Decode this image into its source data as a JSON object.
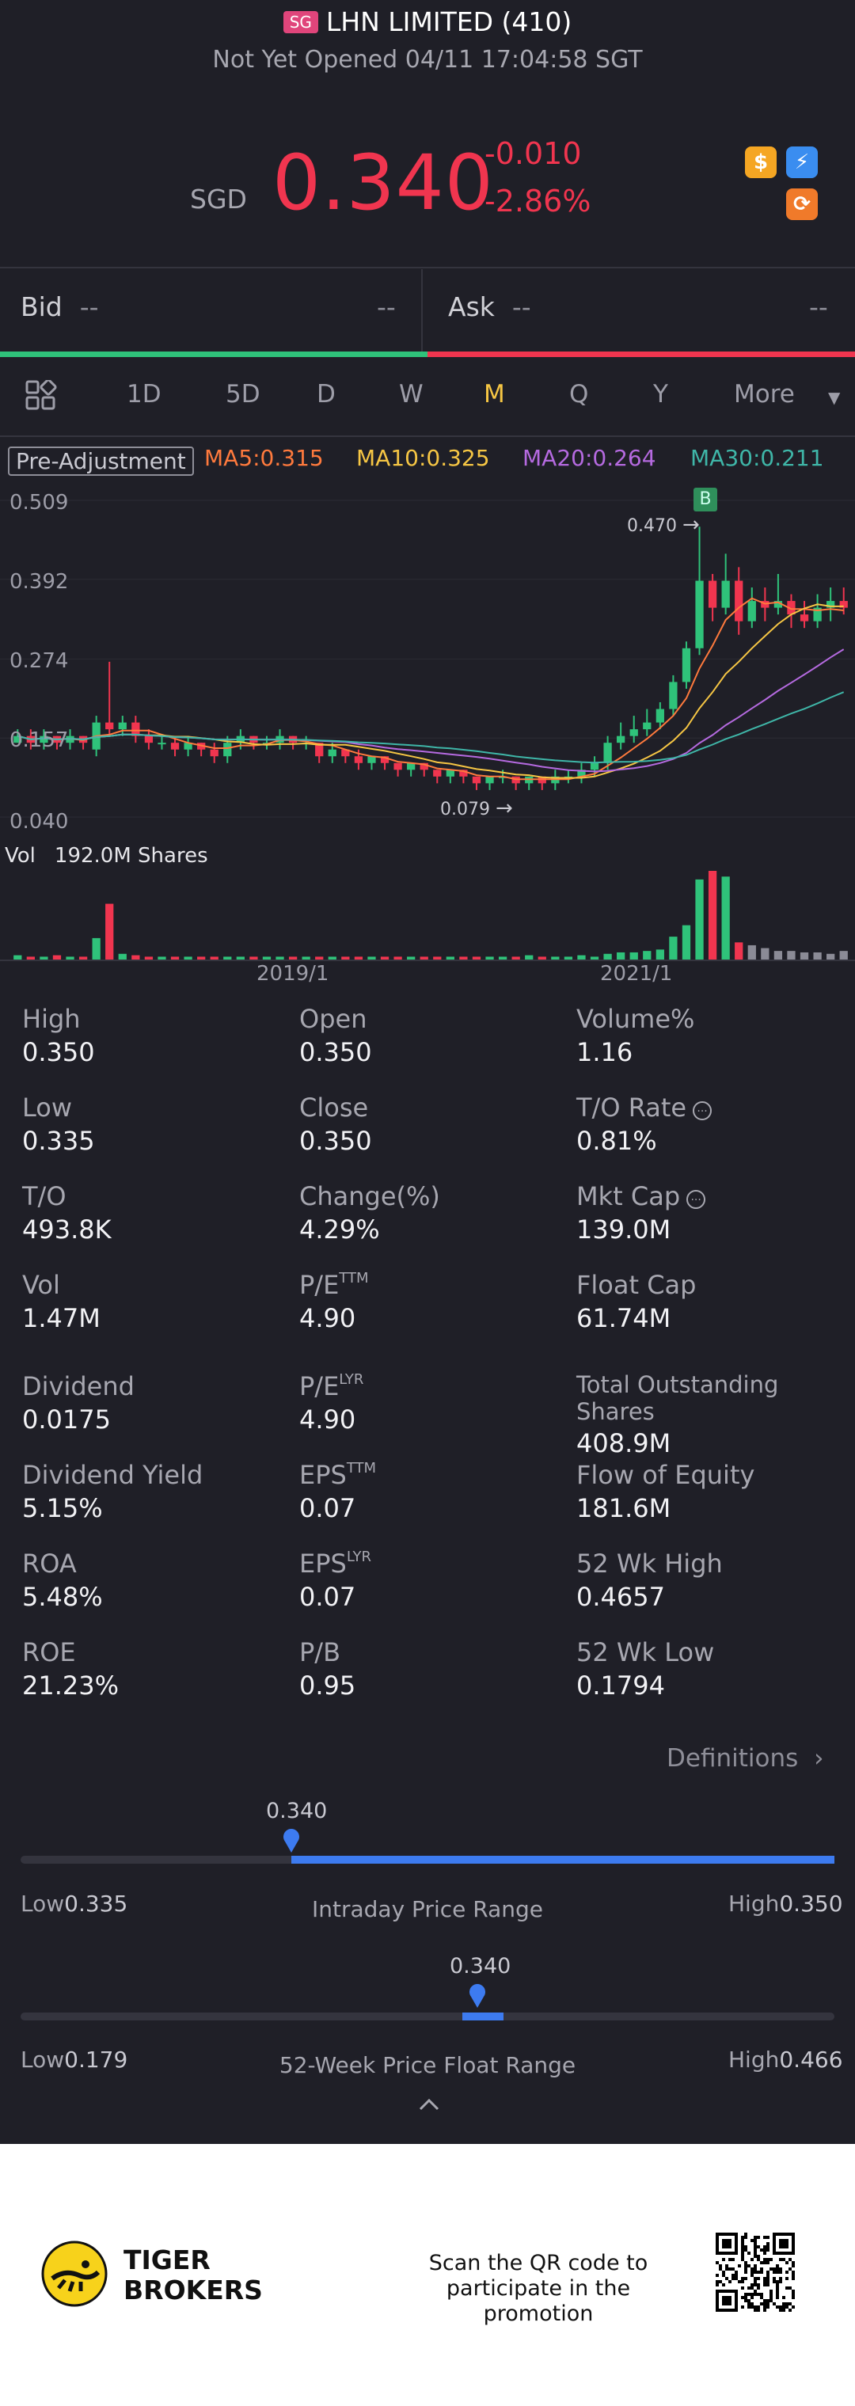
{
  "header": {
    "market_badge": "SG",
    "title": "LHN LIMITED (410)",
    "status": "Not Yet Opened 04/11 17:04:58 SGT"
  },
  "quote": {
    "currency": "SGD",
    "price": "0.340",
    "change": "-0.010",
    "change_pct": "-2.86%",
    "colors": {
      "down": "#f0354f",
      "up": "#2fc27a"
    }
  },
  "badges": [
    "dollar-icon",
    "lightning-icon",
    "refresh-icon"
  ],
  "bidask": {
    "bid_label": "Bid",
    "bid_price": "--",
    "bid_size": "--",
    "ask_label": "Ask",
    "ask_price": "--",
    "ask_size": "--"
  },
  "tabs": {
    "items": [
      {
        "label": "1D"
      },
      {
        "label": "5D"
      },
      {
        "label": "D"
      },
      {
        "label": "W"
      },
      {
        "label": "M"
      },
      {
        "label": "Q"
      },
      {
        "label": "Y"
      },
      {
        "label": "More"
      }
    ],
    "active": "M"
  },
  "chart_labels": {
    "pre_adjustment": "Pre-Adjustment",
    "ma5": "MA5:0.315",
    "ma10": "MA10:0.325",
    "ma20": "MA20:0.264",
    "ma30": "MA30:0.211",
    "y_ticks": [
      "0.509",
      "0.392",
      "0.274",
      "0.157",
      "0.040"
    ],
    "max_marker": "0.470",
    "min_marker": "0.079",
    "b_marker": "B",
    "vol_label": "Vol",
    "vol_value": "192.0M Shares",
    "x_ticks": [
      "2019/1",
      "2021/1"
    ]
  },
  "chart_data": {
    "type": "candlestick",
    "ylim": [
      0.04,
      0.509
    ],
    "ma_colors": {
      "MA5": "#ff7a3d",
      "MA10": "#f6c644",
      "MA20": "#b56ae0",
      "MA30": "#3fb6a8"
    },
    "candles": [
      [
        0.15,
        0.16,
        0.15,
        0.17
      ],
      [
        0.16,
        0.15,
        0.14,
        0.17
      ],
      [
        0.15,
        0.16,
        0.14,
        0.17
      ],
      [
        0.16,
        0.15,
        0.14,
        0.16
      ],
      [
        0.15,
        0.16,
        0.14,
        0.17
      ],
      [
        0.16,
        0.15,
        0.14,
        0.16
      ],
      [
        0.14,
        0.18,
        0.13,
        0.19
      ],
      [
        0.18,
        0.17,
        0.16,
        0.27
      ],
      [
        0.17,
        0.18,
        0.16,
        0.19
      ],
      [
        0.18,
        0.16,
        0.15,
        0.19
      ],
      [
        0.16,
        0.15,
        0.14,
        0.17
      ],
      [
        0.15,
        0.15,
        0.14,
        0.16
      ],
      [
        0.15,
        0.14,
        0.13,
        0.16
      ],
      [
        0.14,
        0.15,
        0.13,
        0.16
      ],
      [
        0.15,
        0.14,
        0.13,
        0.15
      ],
      [
        0.14,
        0.13,
        0.12,
        0.15
      ],
      [
        0.13,
        0.15,
        0.12,
        0.16
      ],
      [
        0.15,
        0.16,
        0.14,
        0.17
      ],
      [
        0.16,
        0.15,
        0.14,
        0.16
      ],
      [
        0.15,
        0.15,
        0.14,
        0.16
      ],
      [
        0.15,
        0.16,
        0.14,
        0.17
      ],
      [
        0.16,
        0.15,
        0.14,
        0.16
      ],
      [
        0.15,
        0.15,
        0.14,
        0.16
      ],
      [
        0.15,
        0.13,
        0.12,
        0.15
      ],
      [
        0.13,
        0.14,
        0.12,
        0.15
      ],
      [
        0.14,
        0.13,
        0.12,
        0.14
      ],
      [
        0.13,
        0.12,
        0.11,
        0.14
      ],
      [
        0.12,
        0.13,
        0.11,
        0.13
      ],
      [
        0.13,
        0.12,
        0.11,
        0.13
      ],
      [
        0.12,
        0.11,
        0.1,
        0.12
      ],
      [
        0.11,
        0.12,
        0.1,
        0.12
      ],
      [
        0.12,
        0.11,
        0.1,
        0.12
      ],
      [
        0.11,
        0.1,
        0.09,
        0.11
      ],
      [
        0.1,
        0.11,
        0.09,
        0.11
      ],
      [
        0.11,
        0.1,
        0.09,
        0.11
      ],
      [
        0.1,
        0.09,
        0.08,
        0.1
      ],
      [
        0.09,
        0.1,
        0.08,
        0.1
      ],
      [
        0.1,
        0.1,
        0.09,
        0.11
      ],
      [
        0.1,
        0.09,
        0.08,
        0.1
      ],
      [
        0.09,
        0.1,
        0.08,
        0.1
      ],
      [
        0.1,
        0.09,
        0.08,
        0.1
      ],
      [
        0.09,
        0.1,
        0.08,
        0.11
      ],
      [
        0.1,
        0.1,
        0.09,
        0.11
      ],
      [
        0.1,
        0.11,
        0.09,
        0.12
      ],
      [
        0.11,
        0.12,
        0.1,
        0.13
      ],
      [
        0.12,
        0.15,
        0.11,
        0.16
      ],
      [
        0.15,
        0.16,
        0.14,
        0.18
      ],
      [
        0.16,
        0.17,
        0.15,
        0.19
      ],
      [
        0.17,
        0.18,
        0.16,
        0.2
      ],
      [
        0.18,
        0.2,
        0.17,
        0.21
      ],
      [
        0.2,
        0.24,
        0.19,
        0.25
      ],
      [
        0.24,
        0.29,
        0.23,
        0.3
      ],
      [
        0.29,
        0.39,
        0.28,
        0.47
      ],
      [
        0.39,
        0.35,
        0.33,
        0.4
      ],
      [
        0.35,
        0.39,
        0.34,
        0.43
      ],
      [
        0.39,
        0.33,
        0.31,
        0.41
      ],
      [
        0.33,
        0.36,
        0.32,
        0.38
      ],
      [
        0.36,
        0.35,
        0.33,
        0.38
      ],
      [
        0.35,
        0.36,
        0.34,
        0.4
      ],
      [
        0.36,
        0.34,
        0.32,
        0.37
      ],
      [
        0.34,
        0.33,
        0.32,
        0.36
      ],
      [
        0.33,
        0.35,
        0.32,
        0.37
      ],
      [
        0.35,
        0.36,
        0.33,
        0.38
      ],
      [
        0.36,
        0.35,
        0.34,
        0.38
      ]
    ],
    "volume": [
      0.3,
      0.2,
      0.2,
      0.3,
      0.2,
      0.2,
      1.5,
      3.9,
      0.4,
      0.3,
      0.2,
      0.2,
      0.2,
      0.2,
      0.2,
      0.2,
      0.2,
      0.2,
      0.2,
      0.2,
      0.2,
      0.2,
      0.2,
      0.2,
      0.2,
      0.2,
      0.2,
      0.2,
      0.2,
      0.2,
      0.2,
      0.2,
      0.2,
      0.2,
      0.2,
      0.2,
      0.2,
      0.2,
      0.2,
      0.3,
      0.2,
      0.2,
      0.2,
      0.3,
      0.2,
      0.4,
      0.5,
      0.5,
      0.6,
      0.7,
      1.6,
      2.4,
      5.6,
      6.2,
      5.8,
      1.2,
      1.0,
      0.8,
      0.6,
      0.6,
      0.5,
      0.5,
      0.4,
      0.6
    ]
  },
  "stats": [
    {
      "label": "High",
      "value": "0.350"
    },
    {
      "label": "Open",
      "value": "0.350"
    },
    {
      "label": "Volume%",
      "value": "1.16"
    },
    {
      "label": "Low",
      "value": "0.335"
    },
    {
      "label": "Close",
      "value": "0.350"
    },
    {
      "label": "T/O Rate",
      "value": "0.81%"
    },
    {
      "label": "T/O",
      "value": "493.8K"
    },
    {
      "label": "Change(%)",
      "value": "4.29%"
    },
    {
      "label": "Mkt Cap",
      "value": "139.0M"
    },
    {
      "label": "Vol",
      "value": "1.47M"
    },
    {
      "label": "P/E",
      "sup": "TTM",
      "value": "4.90"
    },
    {
      "label": "Float Cap",
      "value": "61.74M"
    },
    {
      "label": "Dividend",
      "value": "0.0175"
    },
    {
      "label": "P/E",
      "sup": "LYR",
      "value": "4.90"
    },
    {
      "label": "Total Outstanding Shares",
      "value": "408.9M"
    },
    {
      "label": "Dividend Yield",
      "value": "5.15%"
    },
    {
      "label": "EPS",
      "sup": "TTM",
      "value": "0.07"
    },
    {
      "label": "Flow of Equity",
      "value": "181.6M"
    },
    {
      "label": "ROA",
      "value": "5.48%"
    },
    {
      "label": "EPS",
      "sup": "LYR",
      "value": "0.07"
    },
    {
      "label": "52 Wk High",
      "value": "0.4657"
    },
    {
      "label": "ROE",
      "value": "21.23%"
    },
    {
      "label": "P/B",
      "value": "0.95"
    },
    {
      "label": "52 Wk Low",
      "value": "0.1794"
    }
  ],
  "definitions_label": "Definitions",
  "intraday_range": {
    "current": "0.340",
    "low_label": "Low",
    "low": "0.335",
    "high_label": "High",
    "high": "0.350",
    "title": "Intraday Price Range",
    "marker_fraction": 0.33
  },
  "wk52_range": {
    "current": "0.340",
    "low_label": "Low",
    "low": "0.179",
    "high_label": "High",
    "high": "0.466",
    "title": "52-Week Price Float Range",
    "marker_fraction": 0.56
  },
  "footer": {
    "brand_line1": "TIGER",
    "brand_line2": "BROKERS",
    "promo_line1": "Scan the QR code to",
    "promo_line2": "participate in the promotion"
  }
}
